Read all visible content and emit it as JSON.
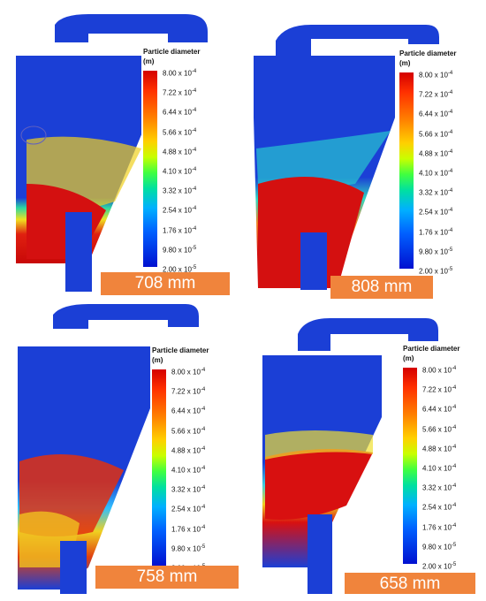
{
  "legend": {
    "title": "Particle diameter",
    "unit": "(m)",
    "ticks": [
      {
        "mantissa": "8.00",
        "exp": "-4"
      },
      {
        "mantissa": "7.22",
        "exp": "-4"
      },
      {
        "mantissa": "6.44",
        "exp": "-4"
      },
      {
        "mantissa": "5.66",
        "exp": "-4"
      },
      {
        "mantissa": "4.88",
        "exp": "-4"
      },
      {
        "mantissa": "4.10",
        "exp": "-4"
      },
      {
        "mantissa": "3.32",
        "exp": "-4"
      },
      {
        "mantissa": "2.54",
        "exp": "-4"
      },
      {
        "mantissa": "1.76",
        "exp": "-4"
      },
      {
        "mantissa": "9.80",
        "exp": "-5"
      },
      {
        "mantissa": "2.00",
        "exp": "-5"
      }
    ]
  },
  "panels": [
    {
      "label": "708 mm"
    },
    {
      "label": "808 mm"
    },
    {
      "label": "758 mm"
    },
    {
      "label": "658 mm"
    }
  ],
  "colors": {
    "badge": "#f0843c",
    "body_blue": "#1a3cd8",
    "particle_red": "#d81010"
  }
}
